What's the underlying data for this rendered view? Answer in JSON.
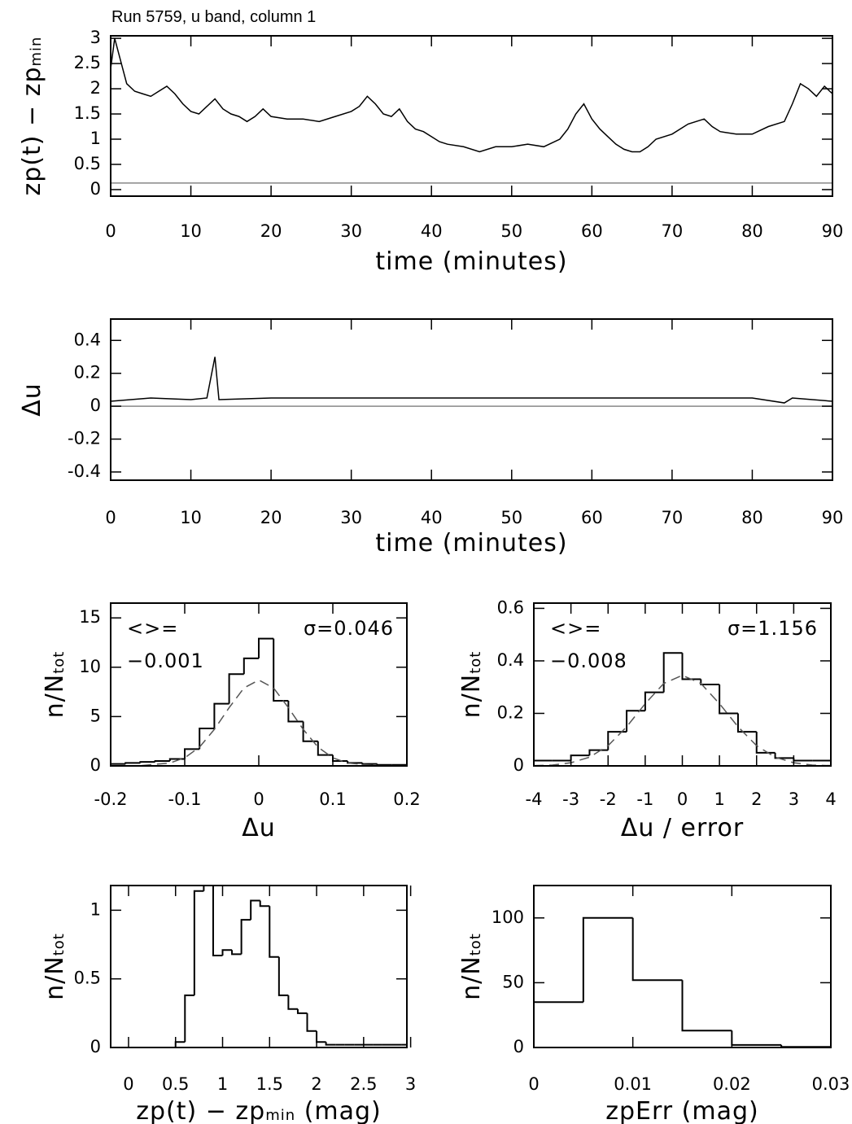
{
  "chart_data": [
    {
      "type": "line",
      "title": "Run 5759, u band, column 1",
      "xlabel": {
        "text": "time (minutes)"
      },
      "ylabel": {
        "text": "zp(t) − zp",
        "sub": "min"
      },
      "xlim": [
        0,
        90
      ],
      "ylim": [
        -0.13,
        3.05
      ],
      "xticks": [
        0,
        10,
        20,
        30,
        40,
        50,
        60,
        70,
        80,
        90
      ],
      "yticks": [
        0,
        0.5,
        1,
        1.5,
        2,
        2.5,
        3
      ],
      "hline": 0.13,
      "hline_color": "#888888",
      "x": [
        0,
        0.5,
        1,
        2,
        3,
        4,
        5,
        6,
        7,
        8,
        9,
        10,
        11,
        12,
        13,
        14,
        15,
        16,
        17,
        18,
        19,
        20,
        22,
        24,
        26,
        28,
        30,
        31,
        32,
        33,
        34,
        35,
        36,
        37,
        38,
        39,
        40,
        41,
        42,
        44,
        46,
        48,
        50,
        52,
        54,
        56,
        57,
        58,
        59,
        60,
        61,
        62,
        63,
        64,
        65,
        66,
        67,
        68,
        70,
        72,
        74,
        75,
        76,
        78,
        80,
        82,
        84,
        85,
        86,
        87,
        88,
        89,
        90
      ],
      "series": [
        {
          "color": "#000000",
          "values": [
            2.4,
            3.0,
            2.7,
            2.1,
            1.95,
            1.9,
            1.85,
            1.95,
            2.05,
            1.9,
            1.7,
            1.55,
            1.5,
            1.65,
            1.8,
            1.6,
            1.5,
            1.45,
            1.35,
            1.45,
            1.6,
            1.45,
            1.4,
            1.4,
            1.35,
            1.45,
            1.55,
            1.65,
            1.85,
            1.7,
            1.5,
            1.45,
            1.6,
            1.35,
            1.2,
            1.15,
            1.05,
            0.95,
            0.9,
            0.85,
            0.75,
            0.85,
            0.85,
            0.9,
            0.85,
            1.0,
            1.2,
            1.5,
            1.7,
            1.4,
            1.2,
            1.05,
            0.9,
            0.8,
            0.75,
            0.75,
            0.85,
            1.0,
            1.1,
            1.3,
            1.4,
            1.25,
            1.15,
            1.1,
            1.1,
            1.25,
            1.35,
            1.7,
            2.1,
            2.0,
            1.85,
            2.05,
            1.9
          ]
        }
      ]
    },
    {
      "type": "line",
      "xlabel": {
        "text": "time (minutes)"
      },
      "ylabel": {
        "text": "Δu"
      },
      "xlim": [
        0,
        90
      ],
      "ylim": [
        -0.45,
        0.53
      ],
      "xticks": [
        0,
        10,
        20,
        30,
        40,
        50,
        60,
        70,
        80,
        90
      ],
      "yticks": [
        -0.4,
        -0.2,
        0,
        0.2,
        0.4
      ],
      "hline": 0,
      "hline_color": "#888888",
      "x": [
        0,
        5,
        10,
        12,
        13,
        13.5,
        20,
        30,
        40,
        50,
        60,
        70,
        80,
        84,
        85,
        90
      ],
      "series": [
        {
          "color": "#000000",
          "values": [
            0.03,
            0.05,
            0.04,
            0.05,
            0.3,
            0.04,
            0.05,
            0.05,
            0.05,
            0.05,
            0.05,
            0.05,
            0.05,
            0.02,
            0.05,
            0.03
          ]
        }
      ]
    },
    {
      "type": "histogram",
      "xlabel": {
        "text": "Δu"
      },
      "ylabel": {
        "text": "n/N",
        "sub": "tot"
      },
      "xlim": [
        -0.2,
        0.2
      ],
      "ylim": [
        0,
        16.5
      ],
      "xticks": [
        -0.2,
        -0.1,
        0,
        0.1,
        0.2
      ],
      "yticks": [
        0,
        5,
        10,
        15
      ],
      "bins": [
        -0.2,
        -0.18,
        -0.16,
        -0.14,
        -0.12,
        -0.1,
        -0.08,
        -0.06,
        -0.04,
        -0.02,
        0,
        0.02,
        0.04,
        0.06,
        0.08,
        0.1,
        0.12,
        0.14,
        0.16,
        0.18,
        0.2
      ],
      "counts": [
        0.2,
        0.3,
        0.4,
        0.5,
        0.7,
        1.7,
        3.8,
        6.3,
        9.3,
        10.9,
        12.9,
        6.6,
        4.5,
        2.5,
        1.1,
        0.5,
        0.3,
        0.2,
        0.1,
        0.1
      ],
      "fit": {
        "x": [
          -0.2,
          -0.16,
          -0.12,
          -0.1,
          -0.08,
          -0.06,
          -0.04,
          -0.02,
          0,
          0.02,
          0.04,
          0.06,
          0.08,
          0.1,
          0.12,
          0.16,
          0.2
        ],
        "values": [
          0,
          0.02,
          0.29,
          0.82,
          1.9,
          3.7,
          5.9,
          7.9,
          8.7,
          7.9,
          5.9,
          3.7,
          1.9,
          0.82,
          0.29,
          0.02,
          0
        ]
      },
      "annotations": [
        "<>=",
        "−0.001",
        "σ=0.046"
      ]
    },
    {
      "type": "histogram",
      "xlabel": {
        "text": "Δu / error"
      },
      "ylabel": {
        "text": "n/N",
        "sub": "tot"
      },
      "xlim": [
        -4,
        4
      ],
      "ylim": [
        0,
        0.62
      ],
      "xticks": [
        -4,
        -3,
        -2,
        -1,
        0,
        1,
        2,
        3,
        4
      ],
      "yticks": [
        0,
        0.2,
        0.4,
        0.6
      ],
      "bins": [
        -4,
        -3.5,
        -3,
        -2.5,
        -2,
        -1.5,
        -1,
        -0.5,
        0,
        0.5,
        1,
        1.5,
        2,
        2.5,
        3,
        3.5,
        4
      ],
      "counts": [
        0.02,
        0.02,
        0.04,
        0.06,
        0.13,
        0.21,
        0.28,
        0.43,
        0.33,
        0.31,
        0.2,
        0.13,
        0.05,
        0.03,
        0.02,
        0.02
      ],
      "fit": {
        "x": [
          -4,
          -3.5,
          -3,
          -2.5,
          -2,
          -1.5,
          -1,
          -0.5,
          0,
          0.5,
          1,
          1.5,
          2,
          2.5,
          3,
          3.5,
          4
        ],
        "values": [
          0.001,
          0.003,
          0.012,
          0.033,
          0.077,
          0.149,
          0.237,
          0.314,
          0.345,
          0.314,
          0.237,
          0.149,
          0.077,
          0.033,
          0.012,
          0.003,
          0.001
        ]
      },
      "annotations": [
        "<>=",
        "−0.008",
        "σ=1.156"
      ]
    },
    {
      "type": "histogram",
      "xlabel": {
        "text": "zp(t) − zp",
        "sub": "min",
        "after": " (mag)"
      },
      "ylabel": {
        "text": "n/N",
        "sub": "tot"
      },
      "xlim": [
        -0.19,
        2.96
      ],
      "ylim": [
        0,
        1.18
      ],
      "xticks": [
        0,
        0.5,
        1,
        1.5,
        2,
        2.5,
        3
      ],
      "yticks": [
        0,
        0.5,
        1
      ],
      "bins": [
        0.5,
        0.6,
        0.7,
        0.8,
        0.9,
        1.0,
        1.1,
        1.2,
        1.3,
        1.4,
        1.5,
        1.6,
        1.7,
        1.8,
        1.9,
        2.0,
        2.1,
        2.2,
        2.3,
        2.4,
        2.5,
        2.6,
        2.7,
        2.8,
        2.9,
        3.0
      ],
      "counts": [
        0.04,
        0.38,
        1.14,
        1.3,
        0.67,
        0.71,
        0.68,
        0.93,
        1.07,
        1.03,
        0.66,
        0.38,
        0.28,
        0.25,
        0.12,
        0.04,
        0.02,
        0.02,
        0.02,
        0.02,
        0.02,
        0.02,
        0.02,
        0.02,
        0.02
      ]
    },
    {
      "type": "histogram",
      "xlabel": {
        "text": "zpErr (mag)"
      },
      "ylabel": {
        "text": "n/N",
        "sub": "tot"
      },
      "xlim": [
        0,
        0.03
      ],
      "ylim": [
        0,
        125
      ],
      "xticks": [
        0,
        0.01,
        0.02,
        0.03
      ],
      "yticks": [
        0,
        50,
        100
      ],
      "bins": [
        0,
        0.005,
        0.01,
        0.015,
        0.02,
        0.025,
        0.03
      ],
      "counts": [
        35,
        100,
        52,
        13,
        2,
        0.5
      ]
    }
  ]
}
